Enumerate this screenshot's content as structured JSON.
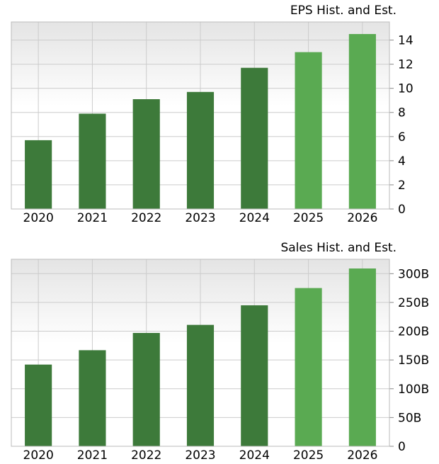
{
  "chart_data": [
    {
      "type": "bar",
      "title": "EPS Hist. and Est.",
      "categories": [
        "2020",
        "2021",
        "2022",
        "2023",
        "2024",
        "2025",
        "2026"
      ],
      "values": [
        5.7,
        7.9,
        9.1,
        9.7,
        11.7,
        13.0,
        14.5
      ],
      "estimate_from_index": 5,
      "ylim": [
        0,
        15.5
      ],
      "yticks": [
        0,
        2,
        4,
        6,
        8,
        10,
        12,
        14
      ],
      "ytick_labels": [
        "0",
        "2",
        "4",
        "6",
        "8",
        "10",
        "12",
        "14"
      ],
      "yaxis_position": "right",
      "grid": true,
      "colors": {
        "historical": "#3d7a3a",
        "estimate": "#5aaa52"
      }
    },
    {
      "type": "bar",
      "title": "Sales Hist. and Est.",
      "categories": [
        "2020",
        "2021",
        "2022",
        "2023",
        "2024",
        "2025",
        "2026"
      ],
      "values": [
        142,
        167,
        197,
        211,
        245,
        275,
        309
      ],
      "value_unit": "B",
      "estimate_from_index": 5,
      "ylim": [
        0,
        325
      ],
      "yticks": [
        0,
        50,
        100,
        150,
        200,
        250,
        300
      ],
      "ytick_labels": [
        "0",
        "50B",
        "100B",
        "150B",
        "200B",
        "250B",
        "300B"
      ],
      "yaxis_position": "right",
      "grid": true,
      "colors": {
        "historical": "#3d7a3a",
        "estimate": "#5aaa52"
      }
    }
  ]
}
